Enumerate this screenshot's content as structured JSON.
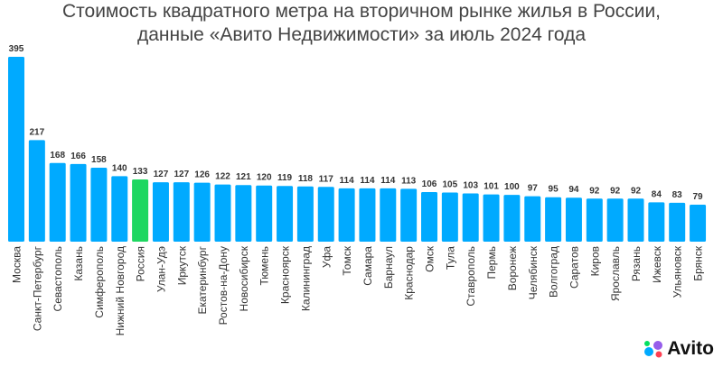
{
  "chart_data": {
    "type": "bar",
    "title": "Стоимость квадратного метра на вторичном рынке жилья в России,",
    "subtitle": "данные «Авито Недвижимости» за июль 2024 года",
    "xlabel": "",
    "ylabel": "",
    "categories": [
      "Москва",
      "Санкт-Петербург",
      "Севастополь",
      "Казань",
      "Симферополь",
      "Нижний Новгород",
      "Россия",
      "Улан-Удэ",
      "Иркутск",
      "Екатеринбург",
      "Ростов-на-Дону",
      "Новосибирск",
      "Тюмень",
      "Красноярск",
      "Калининград",
      "Уфа",
      "Томск",
      "Самара",
      "Барнаул",
      "Краснодар",
      "Омск",
      "Тула",
      "Ставрополь",
      "Пермь",
      "Воронеж",
      "Челябинск",
      "Волгоград",
      "Саратов",
      "Киров",
      "Ярославль",
      "Рязань",
      "Ижевск",
      "Ульяновск",
      "Брянск"
    ],
    "values": [
      395,
      217,
      168,
      166,
      158,
      140,
      133,
      127,
      127,
      126,
      122,
      121,
      120,
      119,
      118,
      117,
      114,
      114,
      114,
      113,
      106,
      105,
      103,
      101,
      100,
      97,
      95,
      94,
      92,
      92,
      92,
      84,
      83,
      79
    ],
    "highlight": "Россия",
    "colors": {
      "bar": "#00aaff",
      "highlight": "#1ed760"
    },
    "ylim": [
      0,
      395
    ],
    "grid": false
  },
  "logo": {
    "text": "Avito"
  }
}
